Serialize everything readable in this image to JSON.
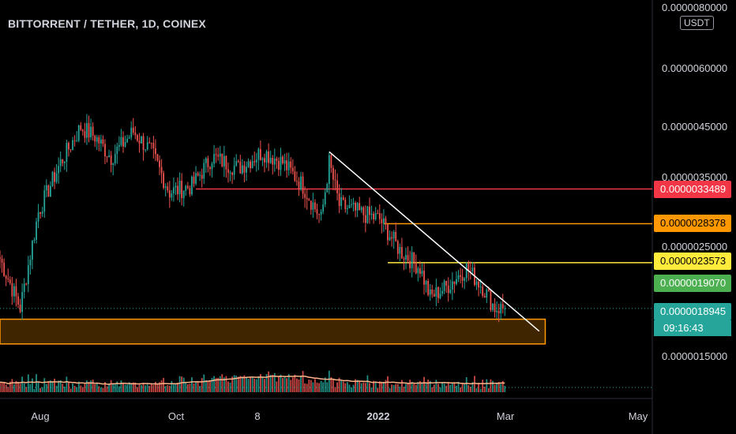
{
  "header": {
    "title": "BITTORRENT / TETHER, 1D, COINEX"
  },
  "axis": {
    "unit": "USDT",
    "yticks": [
      {
        "label": "0.0000080000",
        "value": 8e-06
      },
      {
        "label": "0.0000060000",
        "value": 6e-06
      },
      {
        "label": "0.0000045000",
        "value": 4.5e-06
      },
      {
        "label": "0.0000035000",
        "value": 3.5e-06
      },
      {
        "label": "0.0000025000",
        "value": 2.5e-06
      },
      {
        "label": "0.0000015000",
        "value": 1.5e-06
      }
    ],
    "xticks": [
      "Aug",
      "Oct",
      "8",
      "2022",
      "Mar",
      "May"
    ]
  },
  "price_labels": [
    {
      "label": "0.0000033489",
      "bg": "#f23645",
      "fg": "#ffffff"
    },
    {
      "label": "0.0000028378",
      "bg": "#ff9800",
      "fg": "#000000"
    },
    {
      "label": "0.0000023573",
      "bg": "#ffeb3b",
      "fg": "#000000"
    },
    {
      "label": "0.0000019070",
      "bg": "#4caf50",
      "fg": "#ffffff"
    },
    {
      "label": "0.0000018945",
      "bg": "#26a69a",
      "fg": "#ffffff"
    }
  ],
  "countdown": "09:16:43",
  "chart_data": {
    "type": "candlestick",
    "scale": "log",
    "ylim": [
      1.3e-06,
      8e-06
    ],
    "xlim": [
      "2021-06-26",
      "2022-05-15"
    ],
    "up_color": "#26a69a",
    "down_color": "#ef5350",
    "key_points": [
      {
        "date": "2021-06-26",
        "close": 2.4e-06
      },
      {
        "date": "2021-07-06",
        "close": 1.9e-06
      },
      {
        "date": "2021-07-15",
        "close": 3e-06
      },
      {
        "date": "2021-07-26",
        "close": 3.8e-06
      },
      {
        "date": "2021-08-05",
        "close": 4.5e-06
      },
      {
        "date": "2021-08-12",
        "close": 4.3e-06
      },
      {
        "date": "2021-08-20",
        "close": 3.9e-06
      },
      {
        "date": "2021-08-31",
        "close": 4.4e-06
      },
      {
        "date": "2021-09-09",
        "close": 4e-06
      },
      {
        "date": "2021-09-18",
        "close": 3.3e-06
      },
      {
        "date": "2021-09-29",
        "close": 3.4e-06
      },
      {
        "date": "2021-10-09",
        "close": 3.9e-06
      },
      {
        "date": "2021-10-22",
        "close": 3.7e-06
      },
      {
        "date": "2021-11-03",
        "close": 4e-06
      },
      {
        "date": "2021-11-13",
        "close": 3.8e-06
      },
      {
        "date": "2021-11-23",
        "close": 3.4e-06
      },
      {
        "date": "2021-12-02",
        "close": 2.9e-06
      },
      {
        "date": "2021-12-06",
        "close": 3.8e-06
      },
      {
        "date": "2021-12-11",
        "close": 3.1e-06
      },
      {
        "date": "2021-12-20",
        "close": 3e-06
      },
      {
        "date": "2021-12-31",
        "close": 2.9e-06
      },
      {
        "date": "2022-01-10",
        "close": 2.5e-06
      },
      {
        "date": "2022-01-20",
        "close": 2.3e-06
      },
      {
        "date": "2022-01-25",
        "close": 2e-06
      },
      {
        "date": "2022-02-02",
        "close": 2.1e-06
      },
      {
        "date": "2022-02-12",
        "close": 2.3e-06
      },
      {
        "date": "2022-02-20",
        "close": 2.1e-06
      },
      {
        "date": "2022-02-26",
        "close": 1.9e-06
      },
      {
        "date": "2022-03-03",
        "close": 1.8945e-06
      }
    ],
    "horizontal_levels": [
      {
        "value": 3.3489e-06,
        "color": "#f23645",
        "from": "2021-10-01"
      },
      {
        "value": 2.8378e-06,
        "color": "#ff9800",
        "from": "2022-01-02"
      },
      {
        "value": 2.3573e-06,
        "color": "#ffeb3b",
        "from": "2022-01-04"
      },
      {
        "value": 1.8945e-06,
        "color": "#26a69a",
        "from": "2021-06-26",
        "dotted": true
      }
    ],
    "trendline": {
      "from": {
        "date": "2021-12-06",
        "value": 4e-06
      },
      "to": {
        "date": "2022-03-20",
        "value": 1.7e-06
      },
      "color": "#ffffff"
    },
    "support_zone": {
      "from": "2021-06-26",
      "to": "2022-03-23",
      "top": 1.8e-06,
      "bottom": 1.6e-06,
      "color": "#ff9800"
    }
  }
}
